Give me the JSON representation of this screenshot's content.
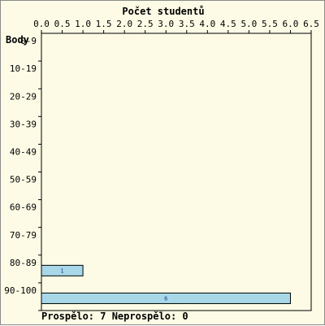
{
  "chart_data": {
    "type": "bar",
    "orientation": "horizontal",
    "title": "Počet studentů",
    "ylabel": "Body",
    "xlabel": "",
    "categories": [
      "0-9",
      "10-19",
      "20-29",
      "30-39",
      "40-49",
      "50-59",
      "60-69",
      "70-79",
      "80-89",
      "90-100"
    ],
    "values": [
      0,
      0,
      0,
      0,
      0,
      0,
      0,
      0,
      1,
      6
    ],
    "data_labels": [
      "",
      "",
      "",
      "",
      "",
      "",
      "",
      "",
      "1",
      "6"
    ],
    "x_ticks": [
      "0.0",
      "0.5",
      "1.0",
      "1.5",
      "2.0",
      "2.5",
      "3.0",
      "3.5",
      "4.0",
      "4.5",
      "5.0",
      "5.5",
      "6.0",
      "6.5"
    ],
    "xlim": [
      0,
      6.5
    ],
    "x_axis_position": "top",
    "grid": true,
    "bar_color": "#a8d8e8",
    "background_color": "#fdfbe6"
  },
  "footer": {
    "text": "Prospělo: 7  Neprospělo: 0"
  }
}
